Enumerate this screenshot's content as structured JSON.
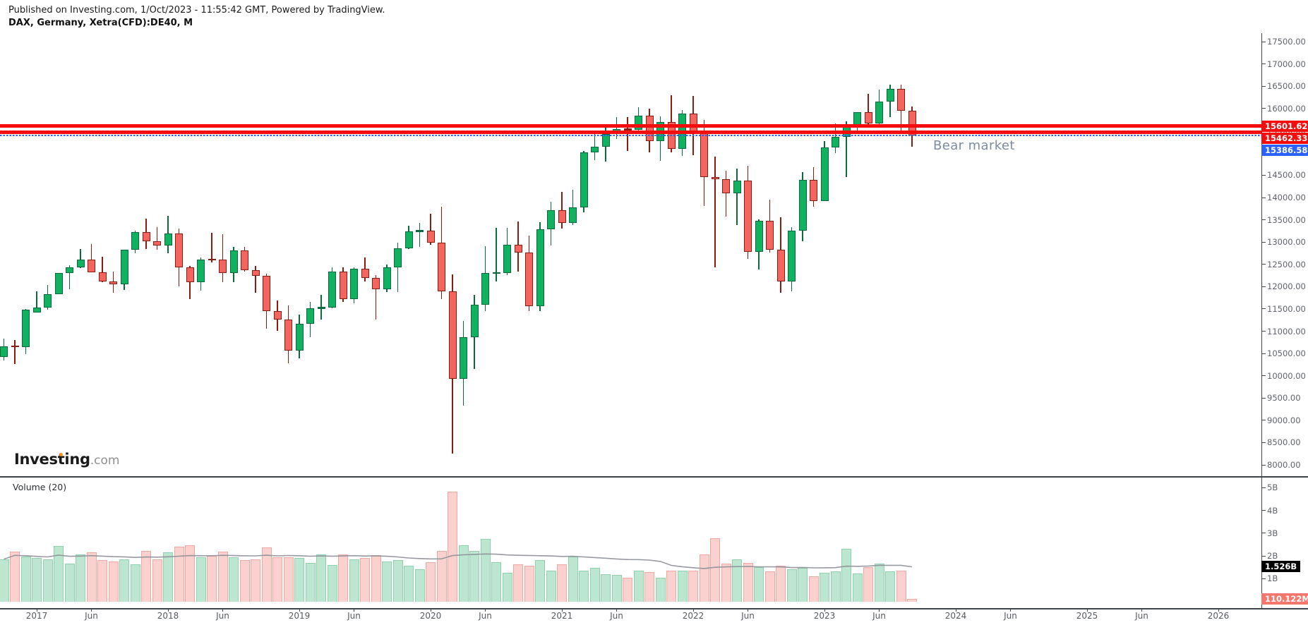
{
  "header": {
    "published_line": "Published on Investing.com, 1/Oct/2023 - 11:55:42 GMT, Powered by TradingView.",
    "instrument_line": "DAX, Germany, Xetra(CFD):DE40, M"
  },
  "watermark": {
    "brand": "Investing",
    "suffix": ".com"
  },
  "annotations": {
    "bear_market": "Bear market"
  },
  "volume_pane": {
    "indicator_label": "Volume (20)",
    "ma_value_label": "1.526B",
    "ma_value_billions": 1.526,
    "last_volume_label": "110.122M",
    "last_volume_billions": 0.110122
  },
  "colors": {
    "up_fill": "#10b25f",
    "up_border": "#0b6a3e",
    "down_fill": "#f4655f",
    "down_border": "#8a1c12",
    "vol_up_fill": "#bde6d0",
    "vol_up_border": "#90d1ae",
    "vol_down_fill": "#fad1ce",
    "vol_down_border": "#f2a8a2",
    "ma_line": "#8c8f97",
    "level_red": "#f50d0d",
    "level_blue": "#2962ff",
    "label_black_bg": "#000000",
    "label_salmon_bg": "#f5766d",
    "axis_text": "#5f636b",
    "axis_line": "#44484f",
    "annotation_text": "#7d8ca0",
    "logo_dot_orange": "#f7941d"
  },
  "chart_data": {
    "type": "candlestick",
    "title": "DAX, Germany, Xetra(CFD):DE40, M",
    "interval": "Monthly",
    "grid": false,
    "legend_position": "none",
    "price_axis": {
      "min": 8000,
      "max": 17500,
      "tick_step": 500,
      "decimals": 2
    },
    "volume_axis": {
      "tick_values_billions": [
        5,
        4,
        3,
        2,
        1
      ],
      "suffix": "B"
    },
    "time_axis": {
      "labels": [
        {
          "text": "2017",
          "m": 0
        },
        {
          "text": "Jun",
          "m": 5
        },
        {
          "text": "2018",
          "m": 12
        },
        {
          "text": "Jun",
          "m": 17
        },
        {
          "text": "2019",
          "m": 24
        },
        {
          "text": "Jun",
          "m": 29
        },
        {
          "text": "2020",
          "m": 36
        },
        {
          "text": "Jun",
          "m": 41
        },
        {
          "text": "2021",
          "m": 48
        },
        {
          "text": "Jun",
          "m": 53
        },
        {
          "text": "2022",
          "m": 60
        },
        {
          "text": "Jun",
          "m": 65
        },
        {
          "text": "2023",
          "m": 72
        },
        {
          "text": "Jun",
          "m": 77
        },
        {
          "text": "2024",
          "m": 84
        },
        {
          "text": "Jun",
          "m": 89
        },
        {
          "text": "2025",
          "m": 96
        },
        {
          "text": "Jun",
          "m": 101
        },
        {
          "text": "2026",
          "m": 108
        }
      ]
    },
    "levels": [
      {
        "value": 15601.62,
        "label": "15601.62",
        "style": "solid-thick",
        "color_key": "level_red"
      },
      {
        "value": 15462.33,
        "label": "15462.33",
        "style": "solid-thick",
        "color_key": "level_red"
      },
      {
        "value": 15386.58,
        "label": "15386.58",
        "style": "dashed",
        "color_key": "level_blue"
      }
    ],
    "volume_ma_period": 20,
    "columns": [
      "month",
      "open",
      "high",
      "low",
      "close",
      "volume_billions"
    ],
    "rows": [
      [
        "2016-10",
        10421,
        10827,
        10349,
        10665,
        1.86
      ],
      [
        "2016-11",
        10665,
        10809,
        10259,
        10640,
        2.19
      ],
      [
        "2016-12",
        10640,
        11505,
        10479,
        11481,
        1.98
      ],
      [
        "2017-01",
        11426,
        11893,
        11415,
        11535,
        1.9
      ],
      [
        "2017-02",
        11535,
        12031,
        11479,
        11834,
        1.85
      ],
      [
        "2017-03",
        11834,
        12313,
        11825,
        12313,
        2.45
      ],
      [
        "2017-04",
        12313,
        12486,
        11941,
        12438,
        1.66
      ],
      [
        "2017-05",
        12438,
        12842,
        12419,
        12615,
        2.06
      ],
      [
        "2017-06",
        12615,
        12952,
        12319,
        12325,
        2.15
      ],
      [
        "2017-07",
        12325,
        12676,
        12101,
        12118,
        1.81
      ],
      [
        "2017-08",
        12118,
        12339,
        11869,
        12056,
        1.76
      ],
      [
        "2017-09",
        12056,
        12829,
        11934,
        12829,
        1.85
      ],
      [
        "2017-10",
        12829,
        13255,
        12750,
        13230,
        1.63
      ],
      [
        "2017-11",
        13230,
        13526,
        12848,
        13024,
        2.22
      ],
      [
        "2017-12",
        13024,
        13338,
        12822,
        12918,
        1.86
      ],
      [
        "2018-01",
        12918,
        13597,
        12745,
        13189,
        2.17
      ],
      [
        "2018-02",
        13189,
        13301,
        12003,
        12436,
        2.4
      ],
      [
        "2018-03",
        12436,
        12458,
        11726,
        12097,
        2.46
      ],
      [
        "2018-04",
        12097,
        12648,
        11914,
        12612,
        1.94
      ],
      [
        "2018-05",
        12612,
        13204,
        12548,
        12604,
        2.0
      ],
      [
        "2018-06",
        12604,
        13170,
        12104,
        12306,
        2.19
      ],
      [
        "2018-07",
        12306,
        12886,
        12106,
        12806,
        1.94
      ],
      [
        "2018-08",
        12806,
        12900,
        12331,
        12364,
        1.81
      ],
      [
        "2018-09",
        12364,
        12459,
        11862,
        12247,
        1.86
      ],
      [
        "2018-10",
        12247,
        12287,
        11051,
        11448,
        2.37
      ],
      [
        "2018-11",
        11448,
        11689,
        11009,
        11257,
        1.94
      ],
      [
        "2018-12",
        11257,
        11571,
        10279,
        10559,
        1.94
      ],
      [
        "2019-01",
        10559,
        11371,
        10387,
        11173,
        1.9
      ],
      [
        "2019-02",
        11173,
        11658,
        10863,
        11516,
        1.69
      ],
      [
        "2019-03",
        11516,
        11823,
        11266,
        11526,
        2.06
      ],
      [
        "2019-04",
        11526,
        12436,
        11519,
        12344,
        1.59
      ],
      [
        "2019-05",
        12344,
        12436,
        11662,
        11727,
        2.06
      ],
      [
        "2019-06",
        11727,
        12439,
        11620,
        12399,
        1.85
      ],
      [
        "2019-07",
        12399,
        12656,
        12115,
        12189,
        1.91
      ],
      [
        "2019-08",
        12189,
        12254,
        11266,
        11939,
        2.03
      ],
      [
        "2019-09",
        11939,
        12495,
        11878,
        12428,
        1.76
      ],
      [
        "2019-10",
        12428,
        12986,
        11878,
        12867,
        1.81
      ],
      [
        "2019-11",
        12867,
        13374,
        12847,
        13236,
        1.57
      ],
      [
        "2019-12",
        13236,
        13425,
        12886,
        13249,
        1.41
      ],
      [
        "2020-01",
        13249,
        13640,
        12932,
        12982,
        1.72
      ],
      [
        "2020-02",
        12982,
        13795,
        11724,
        11890,
        2.22
      ],
      [
        "2020-03",
        11890,
        12273,
        8255,
        9936,
        4.82
      ],
      [
        "2020-04",
        9936,
        11235,
        9337,
        10862,
        2.48
      ],
      [
        "2020-05",
        10862,
        11813,
        10160,
        11587,
        2.22
      ],
      [
        "2020-06",
        11587,
        12913,
        11458,
        12311,
        2.76
      ],
      [
        "2020-07",
        12311,
        13314,
        12116,
        12313,
        1.72
      ],
      [
        "2020-08",
        12313,
        13314,
        12256,
        12945,
        1.26
      ],
      [
        "2020-09",
        12945,
        13460,
        12342,
        12761,
        1.62
      ],
      [
        "2020-10",
        12761,
        13149,
        11450,
        11556,
        1.57
      ],
      [
        "2020-11",
        11556,
        13445,
        11457,
        13291,
        1.83
      ],
      [
        "2020-12",
        13291,
        13903,
        12923,
        13719,
        1.36
      ],
      [
        "2021-01",
        13719,
        14132,
        13310,
        13432,
        1.62
      ],
      [
        "2021-02",
        13432,
        14169,
        13387,
        13786,
        1.98
      ],
      [
        "2021-03",
        13786,
        15047,
        13664,
        15008,
        1.36
      ],
      [
        "2021-04",
        15008,
        15501,
        14845,
        15136,
        1.47
      ],
      [
        "2021-05",
        15136,
        15568,
        14816,
        15421,
        1.21
      ],
      [
        "2021-06",
        15421,
        15803,
        15309,
        15531,
        1.16
      ],
      [
        "2021-07",
        15531,
        15811,
        15049,
        15515,
        1.05
      ],
      [
        "2021-08",
        15515,
        16030,
        15456,
        15835,
        1.34
      ],
      [
        "2021-09",
        15835,
        15997,
        15017,
        15261,
        1.29
      ],
      [
        "2021-10",
        15261,
        15818,
        14819,
        15689,
        1.05
      ],
      [
        "2021-11",
        15689,
        16290,
        15015,
        15100,
        1.34
      ],
      [
        "2021-12",
        15100,
        15965,
        14931,
        15885,
        1.34
      ],
      [
        "2022-01",
        15885,
        16285,
        14953,
        15471,
        1.36
      ],
      [
        "2022-02",
        15471,
        15737,
        13807,
        14461,
        2.06
      ],
      [
        "2022-03",
        14461,
        14926,
        12439,
        14415,
        2.77
      ],
      [
        "2022-04",
        14415,
        14604,
        13566,
        14098,
        1.65
      ],
      [
        "2022-05",
        14098,
        14649,
        13381,
        14388,
        1.84
      ],
      [
        "2022-06",
        14388,
        14709,
        12619,
        12784,
        1.7
      ],
      [
        "2022-07",
        12784,
        13516,
        12391,
        13484,
        1.52
      ],
      [
        "2022-08",
        13484,
        13948,
        12758,
        12835,
        1.31
      ],
      [
        "2022-09",
        12835,
        13564,
        11862,
        12114,
        1.58
      ],
      [
        "2022-10",
        12114,
        13338,
        11894,
        13254,
        1.41
      ],
      [
        "2022-11",
        13254,
        14572,
        13017,
        14397,
        1.47
      ],
      [
        "2022-12",
        14397,
        14676,
        13792,
        13924,
        1.1
      ],
      [
        "2023-01",
        13924,
        15270,
        13923,
        15128,
        1.26
      ],
      [
        "2023-02",
        15128,
        15658,
        14999,
        15365,
        1.31
      ],
      [
        "2023-03",
        15365,
        15706,
        14458,
        15629,
        2.32
      ],
      [
        "2023-04",
        15629,
        15923,
        15483,
        15922,
        1.24
      ],
      [
        "2023-05",
        15922,
        16332,
        15629,
        15664,
        1.52
      ],
      [
        "2023-06",
        15664,
        16427,
        15631,
        16148,
        1.67
      ],
      [
        "2023-07",
        16148,
        16528,
        15808,
        16447,
        1.31
      ],
      [
        "2023-08",
        16447,
        16529,
        15469,
        15947,
        1.34
      ],
      [
        "2023-09",
        15947,
        16044,
        15139,
        15386.58,
        0.110122
      ]
    ]
  }
}
